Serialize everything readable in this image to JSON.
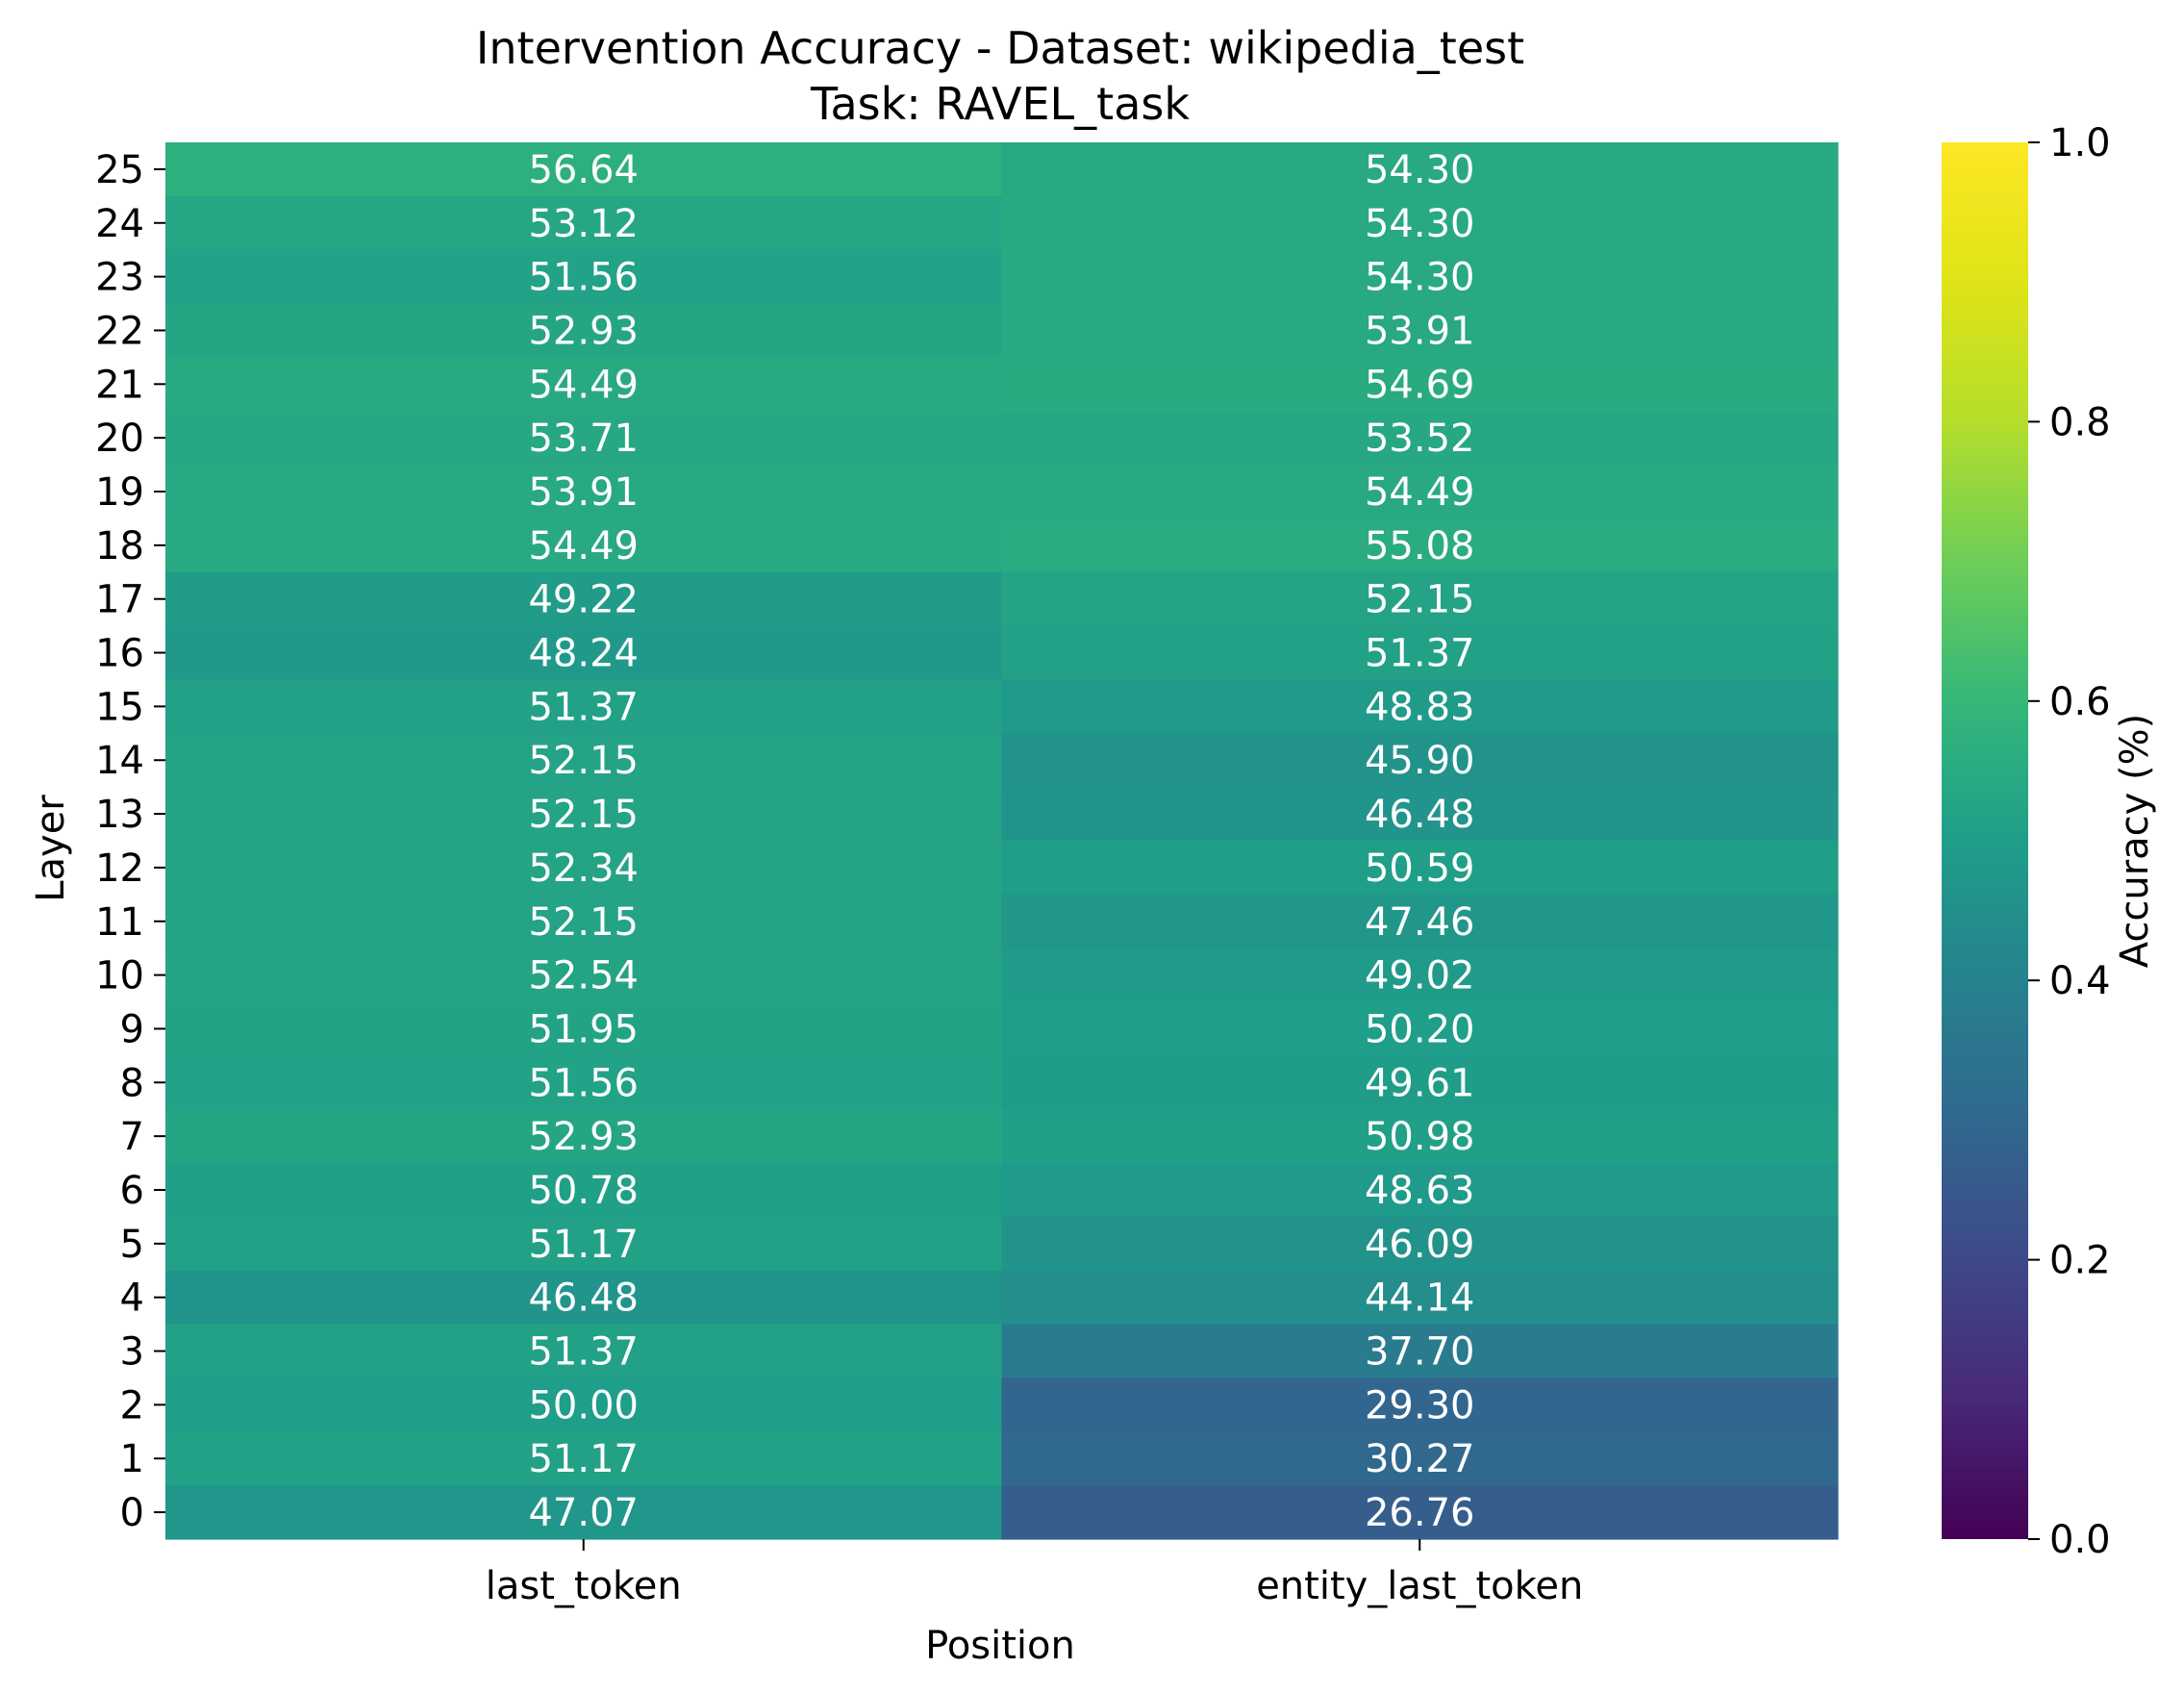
{
  "chart_data": {
    "type": "heatmap",
    "title": "Intervention Accuracy - Dataset: wikipedia_test",
    "subtitle": "Task: RAVEL_task",
    "xlabel": "Position",
    "ylabel": "Layer",
    "x_categories": [
      "last_token",
      "entity_last_token"
    ],
    "y_categories": [
      "25",
      "24",
      "23",
      "22",
      "21",
      "20",
      "19",
      "18",
      "17",
      "16",
      "15",
      "14",
      "13",
      "12",
      "11",
      "10",
      "9",
      "8",
      "7",
      "6",
      "5",
      "4",
      "3",
      "2",
      "1",
      "0"
    ],
    "values": [
      [
        56.64,
        54.3
      ],
      [
        53.12,
        54.3
      ],
      [
        51.56,
        54.3
      ],
      [
        52.93,
        53.91
      ],
      [
        54.49,
        54.69
      ],
      [
        53.71,
        53.52
      ],
      [
        53.91,
        54.49
      ],
      [
        54.49,
        55.08
      ],
      [
        49.22,
        52.15
      ],
      [
        48.24,
        51.37
      ],
      [
        51.37,
        48.83
      ],
      [
        52.15,
        45.9
      ],
      [
        52.15,
        46.48
      ],
      [
        52.34,
        50.59
      ],
      [
        52.15,
        47.46
      ],
      [
        52.54,
        49.02
      ],
      [
        51.95,
        50.2
      ],
      [
        51.56,
        49.61
      ],
      [
        52.93,
        50.98
      ],
      [
        50.78,
        48.63
      ],
      [
        51.17,
        46.09
      ],
      [
        46.48,
        44.14
      ],
      [
        51.37,
        37.7
      ],
      [
        50.0,
        29.3
      ],
      [
        51.17,
        30.27
      ],
      [
        47.07,
        26.76
      ]
    ],
    "colorbar": {
      "label": "Accuracy (%)",
      "range": [
        0,
        1
      ],
      "ticks": [
        "0.0",
        "0.2",
        "0.4",
        "0.6",
        "0.8",
        "1.0"
      ],
      "colormap": "viridis"
    },
    "annotation_color": "#ffffff"
  }
}
